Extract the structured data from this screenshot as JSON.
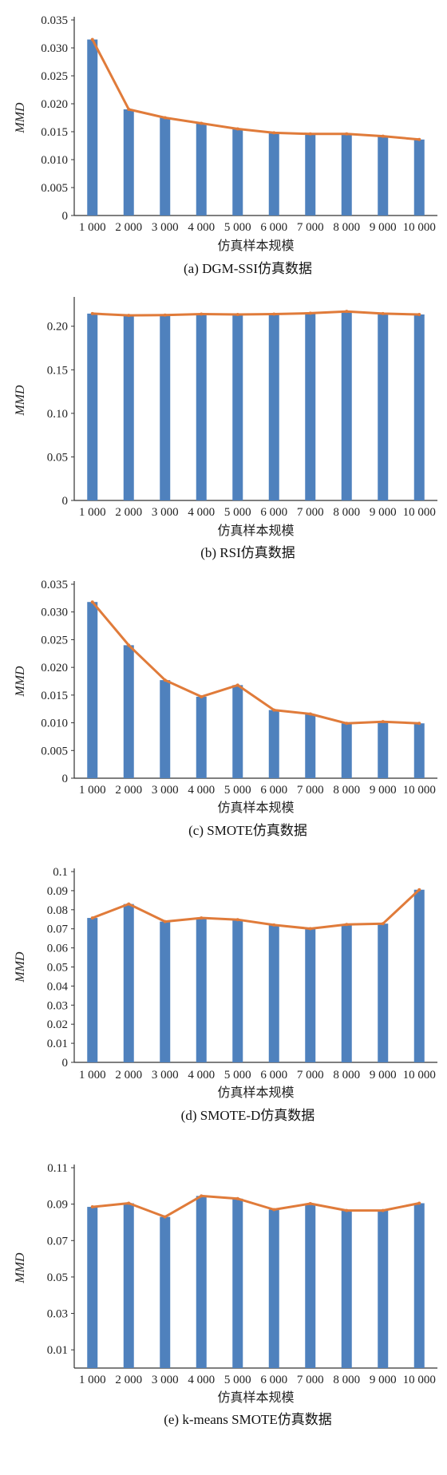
{
  "figure": {
    "bar_color": "#4f81bd",
    "line_color": "#e07b3a"
  },
  "chart_data": [
    {
      "type": "bar",
      "caption": "(a) DGM-SSI仿真数据",
      "xlabel": "仿真样本规模",
      "ylabel": "MMD",
      "categories": [
        "1 000",
        "2 000",
        "3 000",
        "4 000",
        "5 000",
        "6 000",
        "7 000",
        "8 000",
        "9 000",
        "10 000"
      ],
      "values": [
        0.0315,
        0.019,
        0.0175,
        0.0165,
        0.0155,
        0.0148,
        0.0146,
        0.0146,
        0.0142,
        0.0136
      ],
      "ylim": [
        0,
        0.035
      ],
      "yticks": [
        0,
        0.005,
        0.01,
        0.015,
        0.02,
        0.025,
        0.03,
        0.035
      ],
      "ytick_labels": [
        "0",
        "0.005",
        "0.010",
        "0.015",
        "0.020",
        "0.025",
        "0.030",
        "0.035"
      ],
      "overlay_line": true,
      "grid": false,
      "legend": "none"
    },
    {
      "type": "bar",
      "caption": "(b) RSI仿真数据",
      "xlabel": "仿真样本规模",
      "ylabel": "MMD",
      "categories": [
        "1 000",
        "2 000",
        "3 000",
        "4 000",
        "5 000",
        "6 000",
        "7 000",
        "8 000",
        "9 000",
        "10 000"
      ],
      "values": [
        0.2145,
        0.2125,
        0.2128,
        0.214,
        0.2135,
        0.214,
        0.215,
        0.217,
        0.2145,
        0.2135
      ],
      "ylim": [
        0,
        0.23
      ],
      "yticks": [
        0,
        0.05,
        0.1,
        0.15,
        0.2
      ],
      "ytick_labels": [
        "0",
        "0.05",
        "0.10",
        "0.15",
        "0.20"
      ],
      "overlay_line": true,
      "grid": false,
      "legend": "none"
    },
    {
      "type": "bar",
      "caption": "(c) SMOTE仿真数据",
      "xlabel": "仿真样本规模",
      "ylabel": "MMD",
      "categories": [
        "1 000",
        "2 000",
        "3 000",
        "4 000",
        "5 000",
        "6 000",
        "7 000",
        "8 000",
        "9 000",
        "10 000"
      ],
      "values": [
        0.0318,
        0.024,
        0.0177,
        0.0147,
        0.0168,
        0.0123,
        0.0116,
        0.0099,
        0.0102,
        0.0099
      ],
      "ylim": [
        0,
        0.035
      ],
      "yticks": [
        0,
        0.005,
        0.01,
        0.015,
        0.02,
        0.025,
        0.03,
        0.035
      ],
      "ytick_labels": [
        "0",
        "0.005",
        "0.010",
        "0.015",
        "0.020",
        "0.025",
        "0.030",
        "0.035"
      ],
      "overlay_line": true,
      "grid": false,
      "legend": "none"
    },
    {
      "type": "bar",
      "caption": "(d) SMOTE-D仿真数据",
      "xlabel": "仿真样本规模",
      "ylabel": "MMD",
      "categories": [
        "1 000",
        "2 000",
        "3 000",
        "4 000",
        "5 000",
        "6 000",
        "7 000",
        "8 000",
        "9 000",
        "10 000"
      ],
      "values": [
        0.0757,
        0.083,
        0.0738,
        0.0757,
        0.0748,
        0.072,
        0.0701,
        0.0723,
        0.0727,
        0.0905
      ],
      "ylim": [
        0,
        0.1
      ],
      "yticks": [
        0,
        0.01,
        0.02,
        0.03,
        0.04,
        0.05,
        0.06,
        0.07,
        0.08,
        0.09,
        0.1
      ],
      "ytick_labels": [
        "0",
        "0.01",
        "0.02",
        "0.03",
        "0.04",
        "0.05",
        "0.06",
        "0.07",
        "0.08",
        "0.09",
        "0.1"
      ],
      "overlay_line": true,
      "grid": false,
      "legend": "none"
    },
    {
      "type": "bar",
      "caption": "(e) k-means SMOTE仿真数据",
      "xlabel": "仿真样本规模",
      "ylabel": "MMD",
      "categories": [
        "1 000",
        "2 000",
        "3 000",
        "4 000",
        "5 000",
        "6 000",
        "7 000",
        "8 000",
        "9 000",
        "10 000"
      ],
      "values": [
        0.0885,
        0.0905,
        0.083,
        0.0945,
        0.093,
        0.087,
        0.0903,
        0.0865,
        0.0865,
        0.0905
      ],
      "ylim": [
        0,
        0.11
      ],
      "yticks": [
        0.01,
        0.03,
        0.05,
        0.07,
        0.09,
        0.11
      ],
      "ytick_labels": [
        "0.01",
        "0.03",
        "0.05",
        "0.07",
        "0.09",
        "0.11"
      ],
      "overlay_line": true,
      "grid": false,
      "legend": "none"
    }
  ]
}
